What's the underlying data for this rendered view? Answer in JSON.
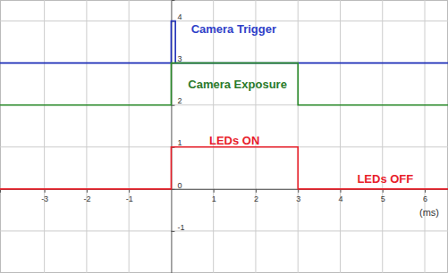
{
  "chart_data": {
    "type": "line",
    "xlabel": "(ms)",
    "xlim": [
      -4.05,
      6.55
    ],
    "ylim": [
      -2,
      4.5
    ],
    "xticks": [
      -3,
      -2,
      -1,
      1,
      2,
      3,
      4,
      5,
      6
    ],
    "yticks": [
      -1,
      0,
      1,
      2,
      3,
      4
    ],
    "grid": true,
    "series": [
      {
        "color": "#1f2fb8",
        "x": [
          -4.05,
          0,
          0,
          0.1,
          0.1,
          6.55
        ],
        "values": [
          3,
          3,
          4,
          4,
          3,
          3
        ]
      },
      {
        "color": "#2a8a2a",
        "x": [
          -4.05,
          0,
          0,
          3,
          3,
          6.55
        ],
        "values": [
          2,
          2,
          3,
          3,
          2,
          2
        ]
      },
      {
        "color": "#e8202a",
        "x": [
          -4.05,
          0,
          0,
          3,
          3,
          6.55
        ],
        "values": [
          0,
          0,
          1,
          1,
          0,
          0
        ]
      }
    ],
    "annotations": [
      {
        "text": "Camera Trigger",
        "x": 0.47,
        "y": 3.72,
        "color": "#2f3fc8"
      },
      {
        "text": "Camera Exposure",
        "x": 0.4,
        "y": 2.4,
        "color": "#2a7a2a"
      },
      {
        "text": "LEDs ON",
        "x": 0.9,
        "y": 1.06,
        "color": "#e8202a"
      },
      {
        "text": "LEDs OFF",
        "x": 4.4,
        "y": 0.15,
        "color": "#e8202a"
      }
    ]
  }
}
